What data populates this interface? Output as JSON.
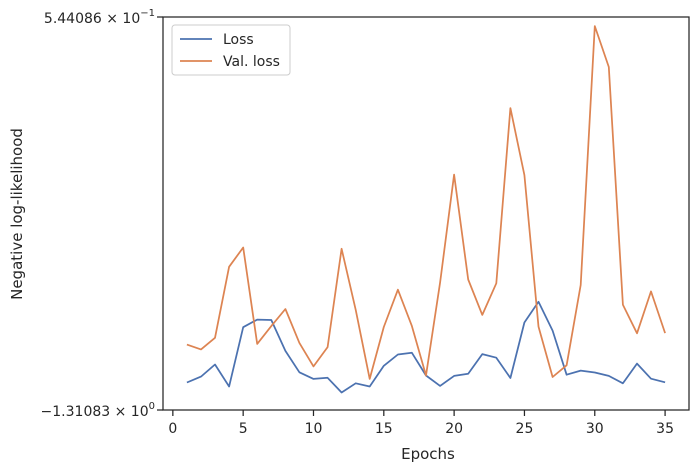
{
  "chart_data": {
    "type": "line",
    "title": "",
    "xlabel": "Epochs",
    "ylabel": "Negative log-likelihood",
    "xlim": [
      -0.7,
      36.7
    ],
    "xticks": [
      0,
      5,
      10,
      15,
      20,
      25,
      30,
      35
    ],
    "xtick_labels": [
      "0",
      "5",
      "10",
      "15",
      "20",
      "25",
      "30",
      "35"
    ],
    "ylim": [
      -1.31083,
      0.544086
    ],
    "ytick_labels": [
      {
        "base": "5.44086 × 10",
        "exp": "−1"
      },
      {
        "base": "−1.31083 × 10",
        "exp": "0"
      }
    ],
    "legend_position": "upper-left",
    "grid": false,
    "x": [
      1,
      2,
      3,
      4,
      5,
      6,
      7,
      8,
      9,
      10,
      11,
      12,
      13,
      14,
      15,
      16,
      17,
      18,
      19,
      20,
      21,
      22,
      23,
      24,
      25,
      26,
      27,
      28,
      29,
      30,
      31,
      32,
      33,
      34,
      35
    ],
    "series": [
      {
        "name": "Loss",
        "color": "#4c72b0",
        "values": [
          -1.181,
          -1.153,
          -1.096,
          -1.2,
          -0.92,
          -0.884,
          -0.886,
          -1.032,
          -1.133,
          -1.164,
          -1.159,
          -1.228,
          -1.185,
          -1.2,
          -1.102,
          -1.049,
          -1.041,
          -1.148,
          -1.197,
          -1.15,
          -1.14,
          -1.047,
          -1.064,
          -1.16,
          -0.898,
          -0.8,
          -0.936,
          -1.144,
          -1.125,
          -1.134,
          -1.15,
          -1.185,
          -1.092,
          -1.163,
          -1.18
        ]
      },
      {
        "name": "Val. loss",
        "color": "#dd8452",
        "values": [
          -1.002,
          -1.025,
          -0.97,
          -0.635,
          -0.544,
          -0.999,
          -0.915,
          -0.834,
          -0.994,
          -1.105,
          -1.014,
          -0.55,
          -0.838,
          -1.164,
          -0.919,
          -0.743,
          -0.915,
          -1.148,
          -0.709,
          -0.2,
          -0.695,
          -0.862,
          -0.713,
          0.114,
          -0.202,
          -0.917,
          -1.155,
          -1.1,
          -0.721,
          0.501,
          0.308,
          -0.814,
          -0.949,
          -0.751,
          -0.948
        ]
      }
    ]
  }
}
